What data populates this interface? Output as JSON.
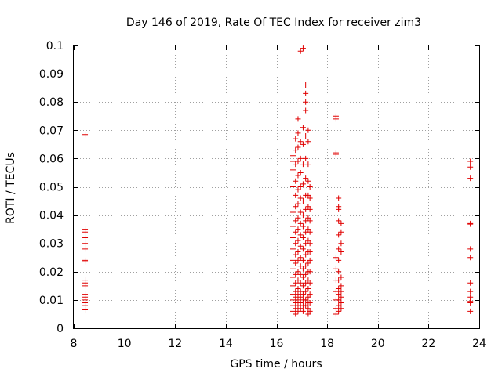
{
  "chart_data": {
    "type": "scatter",
    "title": "Day 146 of 2019, Rate Of TEC Index for receiver zim3",
    "xlabel": "GPS time / hours",
    "ylabel": "ROTI / TECUs",
    "xlim": [
      8,
      24
    ],
    "ylim": [
      0,
      0.1
    ],
    "grid": true,
    "marker": "+",
    "color": "#e00000",
    "x_ticks": [
      8,
      10,
      12,
      14,
      16,
      18,
      20,
      22,
      24
    ],
    "y_ticks": [
      0,
      0.01,
      0.02,
      0.03,
      0.04,
      0.05,
      0.06,
      0.07,
      0.08,
      0.09,
      0.1
    ],
    "x_tick_labels": [
      "8",
      "10",
      "12",
      "14",
      "16",
      "18",
      "20",
      "22",
      "24"
    ],
    "y_tick_labels": [
      "0",
      "0.01",
      "0.02",
      "0.03",
      "0.04",
      "0.05",
      "0.06",
      "0.07",
      "0.08",
      "0.09",
      "0.1"
    ],
    "points": [
      [
        8.45,
        0.0685
      ],
      [
        8.45,
        0.035
      ],
      [
        8.45,
        0.034
      ],
      [
        8.45,
        0.032
      ],
      [
        8.45,
        0.03
      ],
      [
        8.45,
        0.028
      ],
      [
        8.45,
        0.024
      ],
      [
        8.45,
        0.0235
      ],
      [
        8.45,
        0.017
      ],
      [
        8.45,
        0.016
      ],
      [
        8.45,
        0.015
      ],
      [
        8.45,
        0.012
      ],
      [
        8.45,
        0.011
      ],
      [
        8.45,
        0.01
      ],
      [
        8.45,
        0.009
      ],
      [
        8.45,
        0.008
      ],
      [
        8.45,
        0.0065
      ],
      [
        16.65,
        0.061
      ],
      [
        16.65,
        0.059
      ],
      [
        16.65,
        0.056
      ],
      [
        16.65,
        0.05
      ],
      [
        16.65,
        0.045
      ],
      [
        16.65,
        0.041
      ],
      [
        16.65,
        0.036
      ],
      [
        16.65,
        0.032
      ],
      [
        16.65,
        0.028
      ],
      [
        16.65,
        0.024
      ],
      [
        16.65,
        0.021
      ],
      [
        16.65,
        0.018
      ],
      [
        16.65,
        0.015
      ],
      [
        16.65,
        0.012
      ],
      [
        16.65,
        0.01
      ],
      [
        16.65,
        0.008
      ],
      [
        16.65,
        0.006
      ],
      [
        16.75,
        0.067
      ],
      [
        16.75,
        0.063
      ],
      [
        16.75,
        0.058
      ],
      [
        16.75,
        0.052
      ],
      [
        16.75,
        0.047
      ],
      [
        16.75,
        0.043
      ],
      [
        16.75,
        0.038
      ],
      [
        16.75,
        0.034
      ],
      [
        16.75,
        0.03
      ],
      [
        16.75,
        0.026
      ],
      [
        16.75,
        0.023
      ],
      [
        16.75,
        0.019
      ],
      [
        16.75,
        0.016
      ],
      [
        16.75,
        0.013
      ],
      [
        16.75,
        0.011
      ],
      [
        16.75,
        0.009
      ],
      [
        16.75,
        0.007
      ],
      [
        16.75,
        0.005
      ],
      [
        16.85,
        0.074
      ],
      [
        16.85,
        0.069
      ],
      [
        16.85,
        0.064
      ],
      [
        16.85,
        0.059
      ],
      [
        16.85,
        0.054
      ],
      [
        16.85,
        0.049
      ],
      [
        16.85,
        0.044
      ],
      [
        16.85,
        0.039
      ],
      [
        16.85,
        0.035
      ],
      [
        16.85,
        0.031
      ],
      [
        16.85,
        0.027
      ],
      [
        16.85,
        0.024
      ],
      [
        16.85,
        0.02
      ],
      [
        16.85,
        0.017
      ],
      [
        16.85,
        0.014
      ],
      [
        16.85,
        0.012
      ],
      [
        16.85,
        0.01
      ],
      [
        16.85,
        0.008
      ],
      [
        16.85,
        0.006
      ],
      [
        16.95,
        0.098
      ],
      [
        16.95,
        0.066
      ],
      [
        16.95,
        0.06
      ],
      [
        16.95,
        0.055
      ],
      [
        16.95,
        0.05
      ],
      [
        16.95,
        0.046
      ],
      [
        16.95,
        0.041
      ],
      [
        16.95,
        0.037
      ],
      [
        16.95,
        0.033
      ],
      [
        16.95,
        0.029
      ],
      [
        16.95,
        0.025
      ],
      [
        16.95,
        0.022
      ],
      [
        16.95,
        0.019
      ],
      [
        16.95,
        0.016
      ],
      [
        16.95,
        0.013
      ],
      [
        16.95,
        0.011
      ],
      [
        16.95,
        0.009
      ],
      [
        16.95,
        0.007
      ],
      [
        17.05,
        0.099
      ],
      [
        17.05,
        0.071
      ],
      [
        17.05,
        0.065
      ],
      [
        17.05,
        0.058
      ],
      [
        17.05,
        0.051
      ],
      [
        17.05,
        0.045
      ],
      [
        17.05,
        0.04
      ],
      [
        17.05,
        0.036
      ],
      [
        17.05,
        0.032
      ],
      [
        17.05,
        0.028
      ],
      [
        17.05,
        0.024
      ],
      [
        17.05,
        0.021
      ],
      [
        17.05,
        0.018
      ],
      [
        17.05,
        0.015
      ],
      [
        17.05,
        0.012
      ],
      [
        17.05,
        0.01
      ],
      [
        17.05,
        0.008
      ],
      [
        17.05,
        0.006
      ],
      [
        17.15,
        0.086
      ],
      [
        17.15,
        0.083
      ],
      [
        17.15,
        0.08
      ],
      [
        17.15,
        0.077
      ],
      [
        17.15,
        0.068
      ],
      [
        17.15,
        0.06
      ],
      [
        17.15,
        0.053
      ],
      [
        17.15,
        0.047
      ],
      [
        17.15,
        0.042
      ],
      [
        17.15,
        0.038
      ],
      [
        17.15,
        0.034
      ],
      [
        17.15,
        0.03
      ],
      [
        17.15,
        0.026
      ],
      [
        17.15,
        0.022
      ],
      [
        17.15,
        0.019
      ],
      [
        17.15,
        0.016
      ],
      [
        17.15,
        0.013
      ],
      [
        17.15,
        0.01
      ],
      [
        17.15,
        0.008
      ],
      [
        17.25,
        0.07
      ],
      [
        17.25,
        0.066
      ],
      [
        17.25,
        0.058
      ],
      [
        17.25,
        0.052
      ],
      [
        17.25,
        0.047
      ],
      [
        17.25,
        0.043
      ],
      [
        17.25,
        0.039
      ],
      [
        17.25,
        0.035
      ],
      [
        17.25,
        0.031
      ],
      [
        17.25,
        0.027
      ],
      [
        17.25,
        0.023
      ],
      [
        17.25,
        0.02
      ],
      [
        17.25,
        0.017
      ],
      [
        17.25,
        0.014
      ],
      [
        17.25,
        0.011
      ],
      [
        17.25,
        0.009
      ],
      [
        17.25,
        0.007
      ],
      [
        17.25,
        0.005
      ],
      [
        17.32,
        0.05
      ],
      [
        17.32,
        0.046
      ],
      [
        17.32,
        0.042
      ],
      [
        17.32,
        0.038
      ],
      [
        17.32,
        0.034
      ],
      [
        17.32,
        0.03
      ],
      [
        17.32,
        0.027
      ],
      [
        17.32,
        0.024
      ],
      [
        17.32,
        0.02
      ],
      [
        17.32,
        0.016
      ],
      [
        17.32,
        0.012
      ],
      [
        17.32,
        0.009
      ],
      [
        17.32,
        0.006
      ],
      [
        18.35,
        0.075
      ],
      [
        18.35,
        0.074
      ],
      [
        18.35,
        0.062
      ],
      [
        18.35,
        0.0615
      ],
      [
        18.35,
        0.025
      ],
      [
        18.35,
        0.021
      ],
      [
        18.35,
        0.017
      ],
      [
        18.35,
        0.013
      ],
      [
        18.35,
        0.01
      ],
      [
        18.35,
        0.007
      ],
      [
        18.35,
        0.005
      ],
      [
        18.45,
        0.046
      ],
      [
        18.45,
        0.043
      ],
      [
        18.45,
        0.042
      ],
      [
        18.45,
        0.038
      ],
      [
        18.45,
        0.033
      ],
      [
        18.45,
        0.028
      ],
      [
        18.45,
        0.024
      ],
      [
        18.45,
        0.02
      ],
      [
        18.45,
        0.017
      ],
      [
        18.45,
        0.014
      ],
      [
        18.45,
        0.012
      ],
      [
        18.45,
        0.01
      ],
      [
        18.45,
        0.008
      ],
      [
        18.45,
        0.006
      ],
      [
        18.55,
        0.037
      ],
      [
        18.55,
        0.034
      ],
      [
        18.55,
        0.03
      ],
      [
        18.55,
        0.027
      ],
      [
        18.55,
        0.018
      ],
      [
        18.55,
        0.015
      ],
      [
        18.55,
        0.013
      ],
      [
        18.55,
        0.011
      ],
      [
        18.55,
        0.009
      ],
      [
        18.55,
        0.007
      ],
      [
        23.65,
        0.059
      ],
      [
        23.65,
        0.057
      ],
      [
        23.65,
        0.053
      ],
      [
        23.65,
        0.037
      ],
      [
        23.65,
        0.0368
      ],
      [
        23.65,
        0.028
      ],
      [
        23.65,
        0.025
      ],
      [
        23.65,
        0.016
      ],
      [
        23.65,
        0.013
      ],
      [
        23.65,
        0.011
      ],
      [
        23.65,
        0.0095
      ],
      [
        23.65,
        0.009
      ],
      [
        23.65,
        0.006
      ]
    ]
  }
}
